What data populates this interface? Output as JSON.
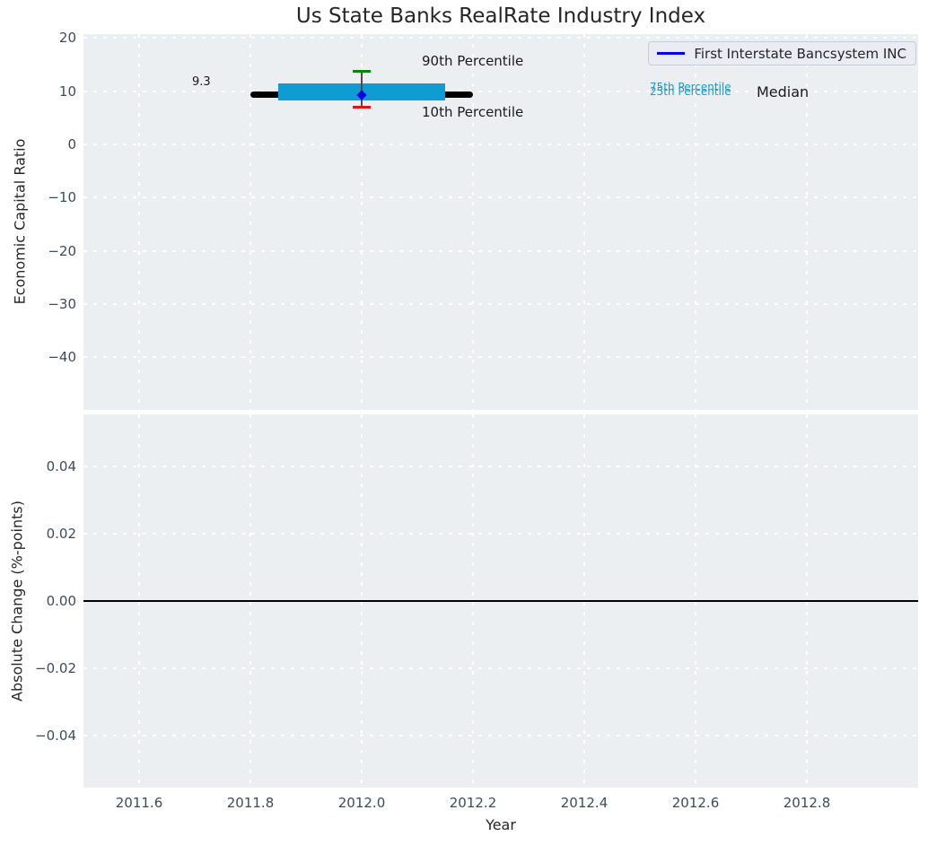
{
  "colors": {
    "figure_background": "#ffffff",
    "axes_background": "#eceff1",
    "grid": "#ffffff",
    "box": "#0f9cd2",
    "median_line": "#000000",
    "p90_cap": "#0a830a",
    "p10_cap": "#e81010",
    "company_line": "#0000e6",
    "tick_text": "#3b4c5c",
    "text": "#262626"
  },
  "chart_data": [
    {
      "type": "line",
      "title": "Us State Banks RealRate Industry Index",
      "ylabel": "Economic Capital Ratio",
      "xlim": [
        2011.5,
        2013.0
      ],
      "ylim": [
        -49.9,
        20.7
      ],
      "grid": true,
      "yticks": {
        "values": [
          20,
          10,
          0,
          -10,
          -20,
          -30,
          -40
        ],
        "labels": [
          "20",
          "10",
          "0",
          "−10",
          "−20",
          "−30",
          "−40"
        ]
      },
      "legend": {
        "location": "upper right",
        "entries": [
          {
            "label": "First Interstate Bancsystem INC",
            "color": "#0000e6",
            "style": "line"
          }
        ]
      },
      "series": [
        {
          "name": "First Interstate Bancsystem INC",
          "color": "#0000e6",
          "points": [
            {
              "x": 2012.0,
              "y": 9.3
            }
          ]
        }
      ],
      "industry_percentiles": {
        "x": 2012.0,
        "p10": 7.0,
        "p25": 8.2,
        "median": 9.3,
        "p75": 11.5,
        "p90": 13.7,
        "median_line_span": [
          2011.8,
          2012.2
        ],
        "box_span": [
          2011.85,
          2012.15
        ],
        "cap_half_width_years": 0.016
      },
      "annotations": {
        "company_value": "9.3",
        "p90": "90th Percentile",
        "p10": "10th Percentile",
        "p75": "75th Percentile",
        "p25": "25th Percentile",
        "median": "Median"
      }
    },
    {
      "type": "line",
      "ylabel": "Absolute Change (%-points)",
      "xlabel": "Year",
      "xlim": [
        2011.5,
        2013.0
      ],
      "ylim": [
        -0.0553,
        0.0553
      ],
      "grid": true,
      "zero_line": 0.0,
      "yticks": {
        "values": [
          0.04,
          0.02,
          0.0,
          -0.02,
          -0.04
        ],
        "labels": [
          "0.04",
          "0.02",
          "0.00",
          "−0.02",
          "−0.04"
        ]
      },
      "xticks": {
        "values": [
          2011.6,
          2011.8,
          2012.0,
          2012.2,
          2012.4,
          2012.6,
          2012.8
        ],
        "labels": [
          "2011.6",
          "2011.8",
          "2012.0",
          "2012.2",
          "2012.4",
          "2012.6",
          "2012.8"
        ]
      }
    }
  ]
}
